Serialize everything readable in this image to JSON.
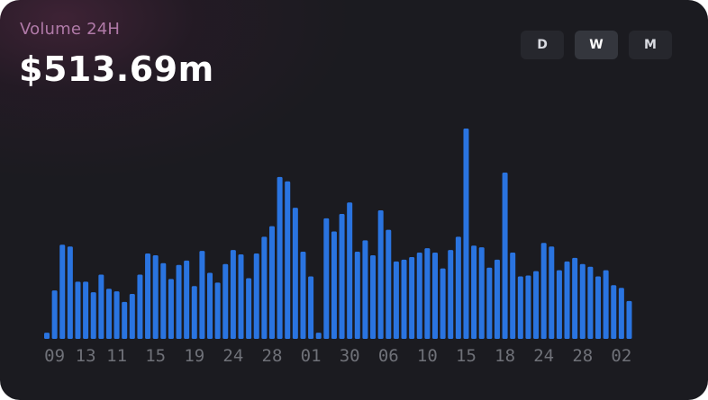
{
  "header": {
    "title": "Volume 24H",
    "value": "$513.69m"
  },
  "timeframes": [
    {
      "label": "D",
      "active": false
    },
    {
      "label": "W",
      "active": true
    },
    {
      "label": "M",
      "active": false
    }
  ],
  "colors": {
    "bar": "#2a74e0",
    "background": "#1b1b20",
    "title": "#b07aa8"
  },
  "chart_data": {
    "type": "bar",
    "title": "Volume 24H",
    "xlabel": "",
    "ylabel": "",
    "ylim": [
      0,
      240
    ],
    "grid": false,
    "tick_labels": [
      {
        "label": "09",
        "index": 1
      },
      {
        "label": "13",
        "index": 5
      },
      {
        "label": "11",
        "index": 9
      },
      {
        "label": "15",
        "index": 14
      },
      {
        "label": "19",
        "index": 19
      },
      {
        "label": "24",
        "index": 24
      },
      {
        "label": "28",
        "index": 29
      },
      {
        "label": "01",
        "index": 34
      },
      {
        "label": "30",
        "index": 39
      },
      {
        "label": "06",
        "index": 44
      },
      {
        "label": "10",
        "index": 49
      },
      {
        "label": "15",
        "index": 54
      },
      {
        "label": "18",
        "index": 59
      },
      {
        "label": "24",
        "index": 64
      },
      {
        "label": "28",
        "index": 69
      },
      {
        "label": "02",
        "index": 74
      }
    ],
    "values": [
      7,
      55,
      107,
      105,
      65,
      65,
      53,
      73,
      57,
      54,
      42,
      51,
      73,
      97,
      95,
      86,
      68,
      84,
      89,
      60,
      100,
      75,
      64,
      85,
      101,
      96,
      69,
      97,
      116,
      128,
      184,
      179,
      149,
      99,
      71,
      7,
      137,
      122,
      142,
      155,
      99,
      112,
      95,
      146,
      124,
      88,
      90,
      93,
      98,
      103,
      98,
      80,
      101,
      116,
      239,
      106,
      104,
      81,
      90,
      189,
      98,
      71,
      72,
      77,
      109,
      105,
      78,
      88,
      92,
      85,
      82,
      71,
      78,
      61,
      58,
      43
    ]
  }
}
